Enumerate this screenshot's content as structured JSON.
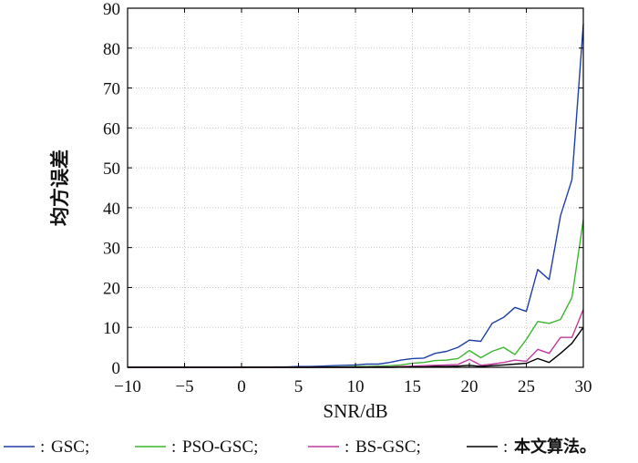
{
  "chart_data": {
    "type": "line",
    "title": "",
    "xlabel": "SNR/dB",
    "ylabel": "均方误差",
    "xlim": [
      -10,
      30
    ],
    "ylim": [
      0,
      90
    ],
    "x_ticks": [
      "−10",
      "−5",
      "0",
      "5",
      "10",
      "15",
      "20",
      "25",
      "30"
    ],
    "y_ticks": [
      "0",
      "10",
      "20",
      "30",
      "40",
      "50",
      "60",
      "70",
      "80",
      "90"
    ],
    "grid": true,
    "legend_position": "bottom",
    "x": [
      -10,
      -9,
      -8,
      -7,
      -6,
      -5,
      -4,
      -3,
      -2,
      -1,
      0,
      1,
      2,
      3,
      4,
      5,
      6,
      7,
      8,
      9,
      10,
      11,
      12,
      13,
      14,
      15,
      16,
      17,
      18,
      19,
      20,
      21,
      22,
      23,
      24,
      25,
      26,
      27,
      28,
      29,
      30
    ],
    "series": [
      {
        "name": "GSC;",
        "legend_label": "—: GSC;",
        "color": "#1f3fa6",
        "values": [
          0,
          0,
          0,
          0,
          0,
          0,
          0,
          0,
          0,
          0,
          0.05,
          0.05,
          0.05,
          0.1,
          0.1,
          0.2,
          0.2,
          0.3,
          0.4,
          0.5,
          0.6,
          0.8,
          0.8,
          1.2,
          1.8,
          2.2,
          2.3,
          3.5,
          4.0,
          5.0,
          6.8,
          6.5,
          11.0,
          12.5,
          15.0,
          14.0,
          24.5,
          22.0,
          38.0,
          47.0,
          86.0
        ]
      },
      {
        "name": "PSO-GSC;",
        "legend_label": "—: PSO-GSC;",
        "color": "#3cb62e",
        "values": [
          0,
          0,
          0,
          0,
          0,
          0,
          0,
          0,
          0,
          0,
          0,
          0,
          0,
          0,
          0,
          0,
          0,
          0.05,
          0.1,
          0.1,
          0.2,
          0.2,
          0.3,
          0.4,
          0.6,
          1.0,
          1.2,
          1.7,
          1.8,
          2.2,
          4.2,
          2.4,
          4.0,
          5.0,
          3.2,
          7.0,
          11.5,
          11.0,
          12.0,
          17.5,
          37.0
        ]
      },
      {
        "name": "BS-GSC;",
        "legend_label": "—: BS-GSC;",
        "color": "#c0399e",
        "values": [
          0,
          0,
          0,
          0,
          0,
          0,
          0,
          0,
          0,
          0,
          0,
          0,
          0,
          0,
          0,
          0,
          0,
          0,
          0,
          0,
          0,
          0.05,
          0.1,
          0.1,
          0.2,
          0.3,
          0.4,
          0.5,
          0.6,
          0.7,
          2.0,
          0.5,
          0.8,
          1.2,
          1.8,
          1.5,
          4.5,
          3.5,
          7.5,
          7.5,
          14.5
        ]
      },
      {
        "name": "本文算法。",
        "legend_label": "—: 本文算法。",
        "color": "#000000",
        "values": [
          0,
          0,
          0,
          0,
          0,
          0,
          0,
          0,
          0,
          0,
          0,
          0,
          0,
          0,
          0,
          0,
          0,
          0,
          0,
          0,
          0,
          0,
          0,
          0,
          0.05,
          0.1,
          0.1,
          0.2,
          0.2,
          0.3,
          0.5,
          0.2,
          0.4,
          0.6,
          0.8,
          1.0,
          2.2,
          1.2,
          3.5,
          6.0,
          10.0
        ]
      }
    ]
  }
}
